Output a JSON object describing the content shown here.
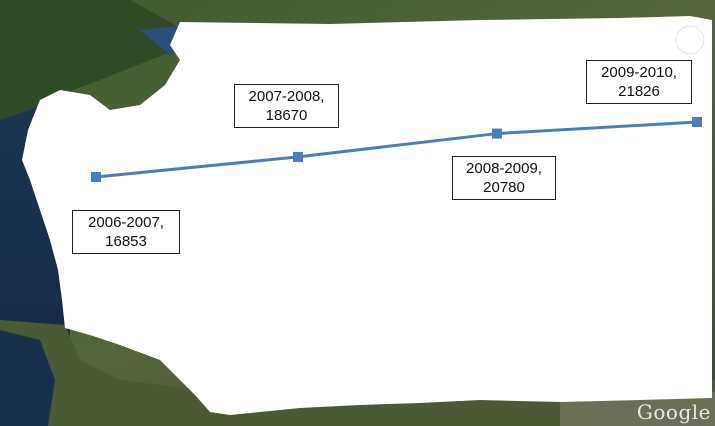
{
  "watermark": "Google",
  "chart_data": {
    "type": "line",
    "categories": [
      "2006-2007",
      "2007-2008",
      "2008-2009",
      "2009-2010"
    ],
    "values": [
      16853,
      18670,
      20780,
      21826
    ],
    "data_labels": [
      {
        "period": "2006-2007,",
        "value": "16853"
      },
      {
        "period": "2007-2008,",
        "value": "18670"
      },
      {
        "period": "2008-2009,",
        "value": "20780"
      },
      {
        "period": "2009-2010,",
        "value": "21826"
      }
    ],
    "line_color": "#4a7ebb",
    "grid": false,
    "legend": "none"
  }
}
